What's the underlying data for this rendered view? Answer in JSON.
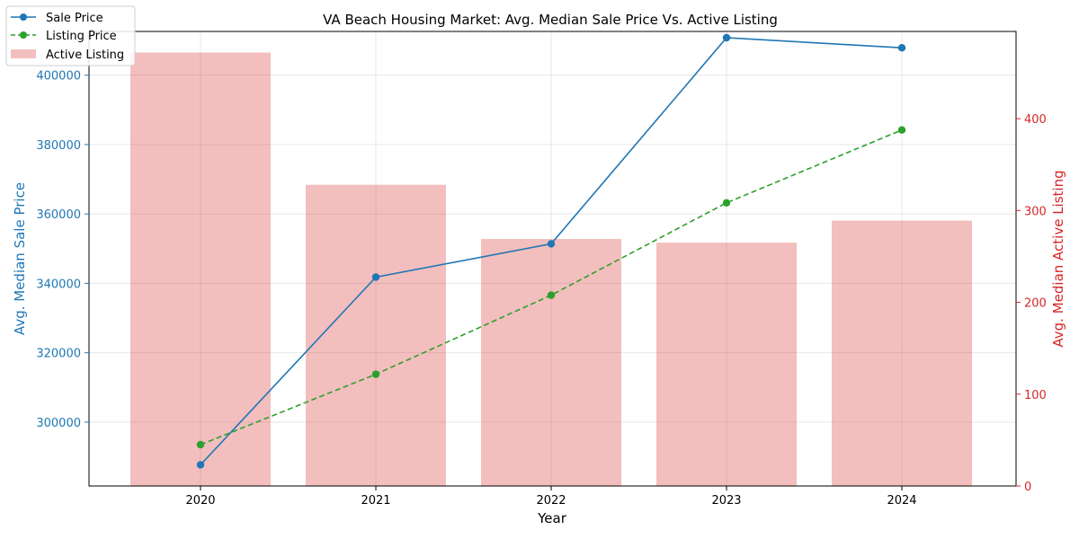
{
  "chart_data": {
    "type": "bar+line",
    "title": "VA Beach Housing Market: Avg. Median Sale Price Vs. Active Listing",
    "xlabel": "Year",
    "ylabel_left": "Avg. Median Sale Price",
    "ylabel_right": "Avg. Median Active Listing",
    "categories": [
      "2020",
      "2021",
      "2022",
      "2023",
      "2024"
    ],
    "left_axis": {
      "ylim": [
        281600,
        412600
      ],
      "ticks": [
        300000,
        320000,
        340000,
        360000,
        380000,
        400000
      ],
      "tick_labels": [
        "300000",
        "320000",
        "340000",
        "360000",
        "380000",
        "400000"
      ],
      "color": "#1f77b4"
    },
    "right_axis": {
      "ylim": [
        0,
        495
      ],
      "ticks": [
        0,
        100,
        200,
        300,
        400
      ],
      "tick_labels": [
        "0",
        "100",
        "200",
        "300",
        "400"
      ],
      "color": "#d62728"
    },
    "grid": true,
    "legend_position": "top-left",
    "series": [
      {
        "name": "Sale Price",
        "kind": "line",
        "style": "solid",
        "marker": "circle",
        "axis": "left",
        "color": "#1f77b4",
        "values": [
          287700,
          341800,
          351400,
          410800,
          407900
        ]
      },
      {
        "name": "Listing Price",
        "kind": "line",
        "style": "dashed",
        "marker": "circle",
        "axis": "left",
        "color": "#2ca02c",
        "values": [
          293500,
          313800,
          336600,
          363200,
          384200
        ]
      },
      {
        "name": "Active Listing",
        "kind": "bar",
        "axis": "right",
        "color": "#d62728",
        "opacity": 0.3,
        "values": [
          472,
          328,
          269,
          265,
          289
        ]
      }
    ]
  }
}
